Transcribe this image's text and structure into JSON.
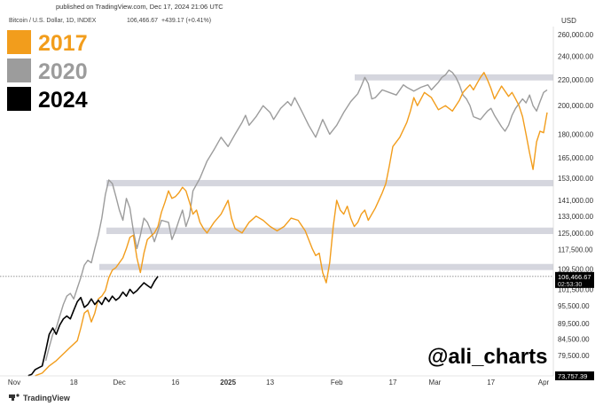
{
  "header": {
    "published": "published on TradingView.com, Dec 17, 2024 21:06 UTC",
    "symbol": "Bitcoin / U.S. Dollar, 1D, INDEX",
    "price": "106,466.67",
    "change": "+439.17 (+0.41%)"
  },
  "currency": "USD",
  "watermark": "@ali_charts",
  "footer": {
    "brand": "TradingView"
  },
  "colors": {
    "s2017": "#f29d1c",
    "s2020": "#9c9c9c",
    "s2024": "#000000",
    "band": "#d5d6de",
    "price_badge": "#000000",
    "axis_text": "#333333"
  },
  "chart_data": {
    "type": "line",
    "y_scale": "log",
    "ylim": [
      73757.39,
      262000
    ],
    "x_ticks": [
      "Nov",
      "18",
      "Dec",
      "16",
      "2025",
      "13",
      "Feb",
      "17",
      "Mar",
      "17",
      "Apr"
    ],
    "x_tick_positions_days": [
      0,
      17,
      30,
      46,
      61,
      73,
      92,
      108,
      120,
      136,
      151
    ],
    "y_ticks": [
      "260,000.00",
      "240,000.00",
      "220,000.00",
      "200,000.00",
      "180,000.00",
      "165,000.00",
      "153,000.00",
      "141,000.00",
      "133,000.00",
      "125,000.00",
      "117,500.00",
      "109,500.00",
      "101,500.00",
      "95,500.00",
      "89,500.00",
      "84,500.00",
      "79,500.00"
    ],
    "y_tick_values": [
      260000,
      240000,
      220000,
      200000,
      180000,
      165000,
      153000,
      141000,
      133000,
      125000,
      117500,
      109500,
      101500,
      95500,
      89500,
      84500,
      79500
    ],
    "price_labels": [
      {
        "value": 106466.67,
        "text": "106,466.67",
        "sub": "02:53:30"
      },
      {
        "value": 73757.39,
        "text": "73,757.39"
      }
    ],
    "bands": [
      {
        "from": 219500,
        "to": 224500
      },
      {
        "from": 148500,
        "to": 152000
      },
      {
        "from": 124500,
        "to": 127500
      },
      {
        "from": 109000,
        "to": 111500
      }
    ],
    "current_price_line": 106466.67,
    "legend": [
      {
        "label": "2017",
        "color": "#f29d1c"
      },
      {
        "label": "2020",
        "color": "#9c9c9c"
      },
      {
        "label": "2024",
        "color": "#000000"
      }
    ],
    "series": [
      {
        "name": "2017",
        "color": "#f29d1c",
        "points": [
          [
            6,
            73800
          ],
          [
            8,
            74500
          ],
          [
            10,
            76500
          ],
          [
            12,
            78000
          ],
          [
            14,
            80000
          ],
          [
            16,
            82000
          ],
          [
            18,
            84000
          ],
          [
            19,
            88000
          ],
          [
            20,
            93000
          ],
          [
            21,
            94000
          ],
          [
            22,
            90000
          ],
          [
            23,
            93000
          ],
          [
            24,
            98000
          ],
          [
            25,
            99000
          ],
          [
            26,
            101000
          ],
          [
            27,
            106000
          ],
          [
            28,
            109000
          ],
          [
            29,
            110000
          ],
          [
            31,
            114000
          ],
          [
            32,
            118000
          ],
          [
            33,
            123000
          ],
          [
            34,
            124000
          ],
          [
            35,
            114000
          ],
          [
            36,
            108000
          ],
          [
            37,
            116000
          ],
          [
            38,
            122000
          ],
          [
            40,
            125000
          ],
          [
            41,
            128000
          ],
          [
            42,
            135000
          ],
          [
            43,
            140000
          ],
          [
            44,
            146000
          ],
          [
            45,
            142000
          ],
          [
            46,
            143000
          ],
          [
            47,
            145000
          ],
          [
            48,
            148000
          ],
          [
            49,
            146000
          ],
          [
            50,
            140000
          ],
          [
            51,
            134000
          ],
          [
            52,
            136000
          ],
          [
            53,
            130000
          ],
          [
            54,
            127000
          ],
          [
            55,
            125000
          ],
          [
            57,
            130000
          ],
          [
            59,
            134000
          ],
          [
            61,
            141000
          ],
          [
            62,
            132000
          ],
          [
            63,
            127000
          ],
          [
            65,
            125000
          ],
          [
            67,
            130000
          ],
          [
            69,
            133000
          ],
          [
            71,
            131000
          ],
          [
            73,
            128000
          ],
          [
            75,
            126000
          ],
          [
            77,
            128000
          ],
          [
            79,
            132000
          ],
          [
            81,
            131000
          ],
          [
            83,
            126000
          ],
          [
            84,
            122000
          ],
          [
            85,
            118000
          ],
          [
            86,
            115000
          ],
          [
            87,
            116000
          ],
          [
            88,
            108000
          ],
          [
            89,
            104000
          ],
          [
            90,
            112000
          ],
          [
            91,
            128000
          ],
          [
            92,
            141000
          ],
          [
            93,
            136000
          ],
          [
            94,
            134000
          ],
          [
            95,
            138000
          ],
          [
            96,
            132000
          ],
          [
            97,
            128000
          ],
          [
            98,
            130000
          ],
          [
            99,
            134000
          ],
          [
            100,
            136000
          ],
          [
            101,
            131000
          ],
          [
            103,
            137000
          ],
          [
            105,
            145000
          ],
          [
            106,
            150000
          ],
          [
            107,
            160000
          ],
          [
            108,
            172000
          ],
          [
            110,
            178000
          ],
          [
            112,
            188000
          ],
          [
            113,
            196000
          ],
          [
            114,
            206000
          ],
          [
            115,
            200000
          ],
          [
            117,
            210000
          ],
          [
            119,
            206000
          ],
          [
            121,
            197000
          ],
          [
            123,
            200000
          ],
          [
            125,
            196000
          ],
          [
            127,
            204000
          ],
          [
            128,
            210000
          ],
          [
            129,
            213000
          ],
          [
            130,
            216000
          ],
          [
            131,
            212000
          ],
          [
            132,
            217000
          ],
          [
            133,
            222000
          ],
          [
            134,
            226000
          ],
          [
            135,
            220000
          ],
          [
            136,
            213000
          ],
          [
            137,
            205000
          ],
          [
            138,
            210000
          ],
          [
            139,
            215000
          ],
          [
            141,
            207000
          ],
          [
            142,
            210000
          ],
          [
            143,
            205000
          ],
          [
            144,
            200000
          ],
          [
            145,
            192000
          ],
          [
            146,
            180000
          ],
          [
            147,
            168000
          ],
          [
            148,
            158000
          ],
          [
            149,
            175000
          ],
          [
            150,
            182000
          ],
          [
            151,
            181000
          ],
          [
            152,
            195000
          ]
        ]
      },
      {
        "name": "2020",
        "color": "#9c9c9c",
        "points": [
          [
            9,
            78000
          ],
          [
            10,
            82000
          ],
          [
            11,
            86000
          ],
          [
            12,
            88000
          ],
          [
            13,
            92000
          ],
          [
            14,
            96000
          ],
          [
            15,
            99000
          ],
          [
            16,
            100000
          ],
          [
            17,
            98000
          ],
          [
            18,
            102000
          ],
          [
            19,
            106000
          ],
          [
            20,
            111000
          ],
          [
            21,
            113000
          ],
          [
            22,
            112000
          ],
          [
            23,
            118000
          ],
          [
            24,
            124000
          ],
          [
            25,
            132000
          ],
          [
            26,
            144000
          ],
          [
            27,
            152000
          ],
          [
            28,
            150000
          ],
          [
            29,
            143000
          ],
          [
            30,
            136000
          ],
          [
            31,
            131000
          ],
          [
            32,
            142000
          ],
          [
            33,
            137000
          ],
          [
            34,
            126000
          ],
          [
            35,
            118000
          ],
          [
            36,
            124000
          ],
          [
            37,
            132000
          ],
          [
            38,
            130000
          ],
          [
            39,
            126000
          ],
          [
            40,
            121000
          ],
          [
            41,
            126000
          ],
          [
            42,
            131000
          ],
          [
            44,
            130000
          ],
          [
            45,
            122000
          ],
          [
            46,
            126000
          ],
          [
            47,
            131000
          ],
          [
            48,
            136000
          ],
          [
            49,
            128000
          ],
          [
            50,
            133000
          ],
          [
            51,
            146000
          ],
          [
            53,
            153000
          ],
          [
            55,
            163000
          ],
          [
            57,
            170000
          ],
          [
            59,
            178000
          ],
          [
            61,
            172000
          ],
          [
            63,
            180000
          ],
          [
            65,
            188000
          ],
          [
            66,
            193000
          ],
          [
            67,
            186000
          ],
          [
            69,
            192000
          ],
          [
            71,
            200000
          ],
          [
            73,
            195000
          ],
          [
            74,
            190000
          ],
          [
            76,
            198000
          ],
          [
            78,
            203000
          ],
          [
            79,
            200000
          ],
          [
            80,
            206000
          ],
          [
            82,
            196000
          ],
          [
            84,
            186000
          ],
          [
            86,
            178000
          ],
          [
            88,
            190000
          ],
          [
            90,
            180000
          ],
          [
            92,
            186000
          ],
          [
            94,
            195000
          ],
          [
            96,
            203000
          ],
          [
            98,
            209000
          ],
          [
            99,
            215000
          ],
          [
            100,
            222000
          ],
          [
            101,
            217000
          ],
          [
            102,
            205000
          ],
          [
            103,
            206000
          ],
          [
            105,
            212000
          ],
          [
            107,
            210000
          ],
          [
            109,
            208000
          ],
          [
            111,
            216000
          ],
          [
            112,
            214000
          ],
          [
            114,
            211000
          ],
          [
            116,
            214000
          ],
          [
            118,
            216000
          ],
          [
            119,
            212000
          ],
          [
            120,
            215000
          ],
          [
            121,
            218000
          ],
          [
            122,
            222000
          ],
          [
            123,
            224000
          ],
          [
            124,
            228000
          ],
          [
            125,
            226000
          ],
          [
            126,
            222000
          ],
          [
            127,
            216000
          ],
          [
            128,
            208000
          ],
          [
            129,
            205000
          ],
          [
            130,
            200000
          ],
          [
            131,
            192000
          ],
          [
            133,
            190000
          ],
          [
            135,
            196000
          ],
          [
            136,
            198000
          ],
          [
            137,
            193000
          ],
          [
            139,
            185000
          ],
          [
            140,
            182000
          ],
          [
            141,
            186000
          ],
          [
            142,
            193000
          ],
          [
            143,
            198000
          ],
          [
            145,
            205000
          ],
          [
            146,
            202000
          ],
          [
            147,
            208000
          ],
          [
            148,
            200000
          ],
          [
            149,
            196000
          ],
          [
            150,
            203000
          ],
          [
            151,
            210000
          ],
          [
            152,
            212000
          ]
        ]
      },
      {
        "name": "2024",
        "color": "#000000",
        "points": [
          [
            4,
            73800
          ],
          [
            5,
            74200
          ],
          [
            6,
            75500
          ],
          [
            7,
            76000
          ],
          [
            8,
            76500
          ],
          [
            9,
            81000
          ],
          [
            10,
            86000
          ],
          [
            11,
            88000
          ],
          [
            12,
            86000
          ],
          [
            13,
            89000
          ],
          [
            14,
            91000
          ],
          [
            15,
            92000
          ],
          [
            16,
            91000
          ],
          [
            17,
            94000
          ],
          [
            18,
            97000
          ],
          [
            19,
            98500
          ],
          [
            20,
            95000
          ],
          [
            21,
            96000
          ],
          [
            22,
            98000
          ],
          [
            23,
            96000
          ],
          [
            24,
            97500
          ],
          [
            25,
            96000
          ],
          [
            26,
            98500
          ],
          [
            27,
            97000
          ],
          [
            28,
            99000
          ],
          [
            29,
            97500
          ],
          [
            30,
            98500
          ],
          [
            31,
            100500
          ],
          [
            32,
            99000
          ],
          [
            33,
            101500
          ],
          [
            34,
            100000
          ],
          [
            35,
            101000
          ],
          [
            36,
            102500
          ],
          [
            37,
            104000
          ],
          [
            38,
            103000
          ],
          [
            39,
            102000
          ],
          [
            40,
            104500
          ],
          [
            41,
            106500
          ]
        ]
      }
    ]
  }
}
